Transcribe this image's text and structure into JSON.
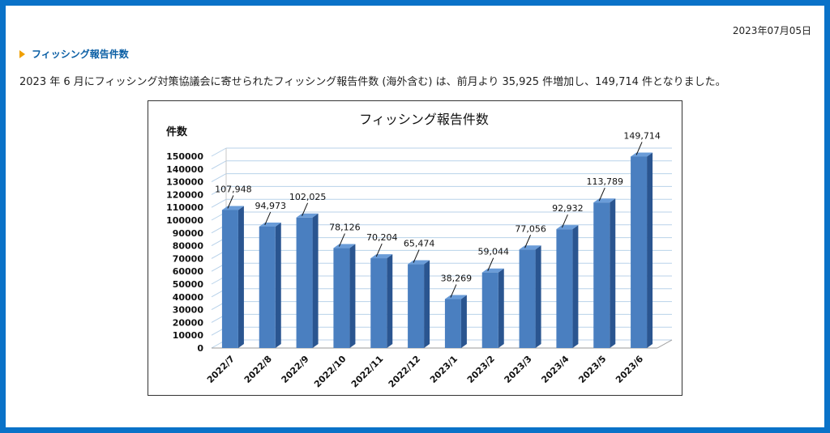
{
  "header": {
    "date": "2023年07月05日"
  },
  "section": {
    "title": "フィッシング報告件数"
  },
  "description": "2023 年 6 月にフィッシング対策協議会に寄せられたフィッシング報告件数 (海外含む) は、前月より 35,925 件増加し、149,714 件となりました。",
  "colors": {
    "bar_front": "#4a7fc0",
    "bar_side": "#2a5590",
    "bar_top": "#6a9cd8",
    "grid": "#b8d2ea",
    "accent": "#0a72c8"
  },
  "chart_data": {
    "type": "bar",
    "title": "フィッシング報告件数",
    "ylabel": "件数",
    "xlabel": "",
    "ylim": [
      0,
      150000
    ],
    "ytick_step": 10000,
    "grid": true,
    "categories": [
      "2022/7",
      "2022/8",
      "2022/9",
      "2022/10",
      "2022/11",
      "2022/12",
      "2023/1",
      "2023/2",
      "2023/3",
      "2023/4",
      "2023/5",
      "2023/6"
    ],
    "values": [
      107948,
      94973,
      102025,
      78126,
      70204,
      65474,
      38269,
      59044,
      77056,
      92932,
      113789,
      149714
    ],
    "data_labels": [
      "107,948",
      "94,973",
      "102,025",
      "78,126",
      "70,204",
      "65,474",
      "38,269",
      "59,044",
      "77,056",
      "92,932",
      "113,789",
      "149,714"
    ]
  }
}
